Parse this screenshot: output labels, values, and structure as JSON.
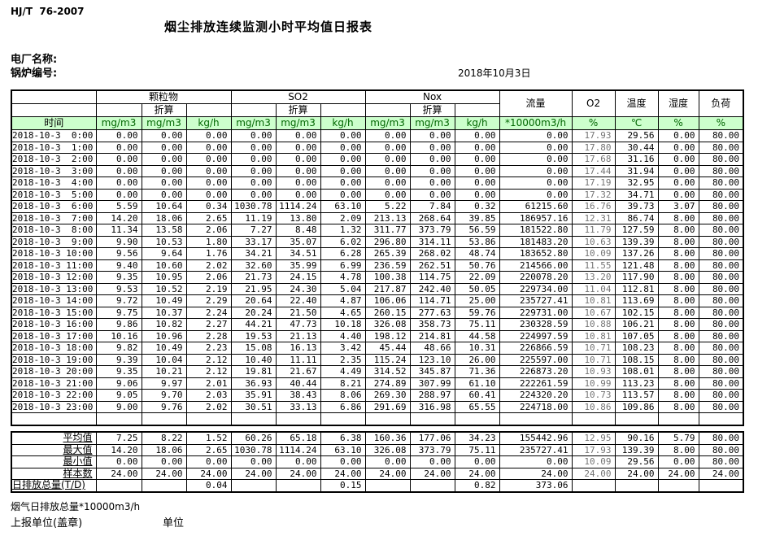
{
  "page": {
    "doc_code": "HJ/T  76-2007",
    "title": "烟尘排放连续监测小时平均值日报表",
    "plant_label": "电厂名称:",
    "boiler_label": "锅炉编号:",
    "date": "2018年10月3日",
    "footer_flue_total": "烟气日排放总量*10000m3/h",
    "footer_report_unit": "上报单位(盖章)",
    "footer_unit": "单位"
  },
  "colors": {
    "header_green": "#ccffcc",
    "unit_text_green": "#006600",
    "o2_text_gray": "#757575"
  },
  "table": {
    "time_header": "时间",
    "groups": [
      "颗粒物",
      "SO2",
      "Nox"
    ],
    "zhesuan": "折算",
    "singles": [
      "流量",
      "O2",
      "温度",
      "湿度",
      "负荷"
    ],
    "units": [
      "mg/m3",
      "mg/m3",
      "kg/h",
      "mg/m3",
      "mg/m3",
      "kg/h",
      "mg/m3",
      "mg/m3",
      "kg/h",
      "*10000m3/h",
      "%",
      "℃",
      "%",
      "%"
    ],
    "rows": [
      {
        "time": "2018-10-3  0:00",
        "values": [
          "0.00",
          "0.00",
          "0.00",
          "0.00",
          "0.00",
          "0.00",
          "0.00",
          "0.00",
          "0.00",
          "0.00",
          "17.93",
          "29.56",
          "0.00",
          "80.00"
        ]
      },
      {
        "time": "2018-10-3  1:00",
        "values": [
          "0.00",
          "0.00",
          "0.00",
          "0.00",
          "0.00",
          "0.00",
          "0.00",
          "0.00",
          "0.00",
          "0.00",
          "17.80",
          "30.44",
          "0.00",
          "80.00"
        ]
      },
      {
        "time": "2018-10-3  2:00",
        "values": [
          "0.00",
          "0.00",
          "0.00",
          "0.00",
          "0.00",
          "0.00",
          "0.00",
          "0.00",
          "0.00",
          "0.00",
          "17.68",
          "31.16",
          "0.00",
          "80.00"
        ]
      },
      {
        "time": "2018-10-3  3:00",
        "values": [
          "0.00",
          "0.00",
          "0.00",
          "0.00",
          "0.00",
          "0.00",
          "0.00",
          "0.00",
          "0.00",
          "0.00",
          "17.44",
          "31.94",
          "0.00",
          "80.00"
        ]
      },
      {
        "time": "2018-10-3  4:00",
        "values": [
          "0.00",
          "0.00",
          "0.00",
          "0.00",
          "0.00",
          "0.00",
          "0.00",
          "0.00",
          "0.00",
          "0.00",
          "17.19",
          "32.95",
          "0.00",
          "80.00"
        ]
      },
      {
        "time": "2018-10-3  5:00",
        "values": [
          "0.00",
          "0.00",
          "0.00",
          "0.00",
          "0.00",
          "0.00",
          "0.00",
          "0.00",
          "0.00",
          "0.00",
          "17.32",
          "34.71",
          "0.00",
          "80.00"
        ]
      },
      {
        "time": "2018-10-3  6:00",
        "values": [
          "5.59",
          "10.64",
          "0.34",
          "1030.78",
          "1114.24",
          "63.10",
          "5.22",
          "7.84",
          "0.32",
          "61215.60",
          "16.76",
          "39.73",
          "3.07",
          "80.00"
        ]
      },
      {
        "time": "2018-10-3  7:00",
        "values": [
          "14.20",
          "18.06",
          "2.65",
          "11.19",
          "13.80",
          "2.09",
          "213.13",
          "268.64",
          "39.85",
          "186957.16",
          "12.31",
          "86.74",
          "8.00",
          "80.00"
        ]
      },
      {
        "time": "2018-10-3  8:00",
        "values": [
          "11.34",
          "13.58",
          "2.06",
          "7.27",
          "8.48",
          "1.32",
          "311.77",
          "373.79",
          "56.59",
          "181522.80",
          "11.79",
          "127.59",
          "8.00",
          "80.00"
        ]
      },
      {
        "time": "2018-10-3  9:00",
        "values": [
          "9.90",
          "10.53",
          "1.80",
          "33.17",
          "35.07",
          "6.02",
          "296.80",
          "314.11",
          "53.86",
          "181483.20",
          "10.63",
          "139.39",
          "8.00",
          "80.00"
        ]
      },
      {
        "time": "2018-10-3 10:00",
        "values": [
          "9.56",
          "9.64",
          "1.76",
          "34.21",
          "34.51",
          "6.28",
          "265.39",
          "268.02",
          "48.74",
          "183652.80",
          "10.09",
          "137.26",
          "8.00",
          "80.00"
        ]
      },
      {
        "time": "2018-10-3 11:00",
        "values": [
          "9.40",
          "10.60",
          "2.02",
          "32.60",
          "35.99",
          "6.99",
          "236.59",
          "262.51",
          "50.76",
          "214566.00",
          "11.55",
          "121.48",
          "8.00",
          "80.00"
        ]
      },
      {
        "time": "2018-10-3 12:00",
        "values": [
          "9.35",
          "10.95",
          "2.06",
          "21.73",
          "24.15",
          "4.78",
          "100.38",
          "114.75",
          "22.09",
          "220078.20",
          "13.20",
          "117.90",
          "8.00",
          "80.00"
        ]
      },
      {
        "time": "2018-10-3 13:00",
        "values": [
          "9.53",
          "10.52",
          "2.19",
          "21.95",
          "24.30",
          "5.04",
          "217.87",
          "242.40",
          "50.05",
          "229734.00",
          "11.04",
          "112.81",
          "8.00",
          "80.00"
        ]
      },
      {
        "time": "2018-10-3 14:00",
        "values": [
          "9.72",
          "10.49",
          "2.29",
          "20.64",
          "22.40",
          "4.87",
          "106.06",
          "114.71",
          "25.00",
          "235727.41",
          "10.81",
          "113.69",
          "8.00",
          "80.00"
        ]
      },
      {
        "time": "2018-10-3 15:00",
        "values": [
          "9.75",
          "10.37",
          "2.24",
          "20.24",
          "21.50",
          "4.65",
          "260.15",
          "277.63",
          "59.76",
          "229731.00",
          "10.67",
          "102.15",
          "8.00",
          "80.00"
        ]
      },
      {
        "time": "2018-10-3 16:00",
        "values": [
          "9.86",
          "10.82",
          "2.27",
          "44.21",
          "47.73",
          "10.18",
          "326.08",
          "358.73",
          "75.11",
          "230328.59",
          "10.88",
          "106.21",
          "8.00",
          "80.00"
        ]
      },
      {
        "time": "2018-10-3 17:00",
        "values": [
          "10.16",
          "10.96",
          "2.28",
          "19.53",
          "21.13",
          "4.40",
          "198.12",
          "214.81",
          "44.58",
          "224997.59",
          "10.81",
          "107.05",
          "8.00",
          "80.00"
        ]
      },
      {
        "time": "2018-10-3 18:00",
        "values": [
          "9.82",
          "10.49",
          "2.23",
          "15.08",
          "16.13",
          "3.42",
          "45.44",
          "48.66",
          "10.31",
          "226866.59",
          "10.71",
          "108.23",
          "8.00",
          "80.00"
        ]
      },
      {
        "time": "2018-10-3 19:00",
        "values": [
          "9.39",
          "10.04",
          "2.12",
          "10.40",
          "11.11",
          "2.35",
          "115.24",
          "123.10",
          "26.00",
          "225597.00",
          "10.71",
          "108.15",
          "8.00",
          "80.00"
        ]
      },
      {
        "time": "2018-10-3 20:00",
        "values": [
          "9.35",
          "10.21",
          "2.12",
          "19.81",
          "21.67",
          "4.49",
          "314.52",
          "345.87",
          "71.36",
          "226873.20",
          "10.93",
          "108.01",
          "8.00",
          "80.00"
        ]
      },
      {
        "time": "2018-10-3 21:00",
        "values": [
          "9.06",
          "9.97",
          "2.01",
          "36.93",
          "40.44",
          "8.21",
          "274.89",
          "307.99",
          "61.10",
          "222261.59",
          "10.99",
          "113.23",
          "8.00",
          "80.00"
        ]
      },
      {
        "time": "2018-10-3 22:00",
        "values": [
          "9.05",
          "9.70",
          "2.03",
          "35.91",
          "38.43",
          "8.06",
          "269.30",
          "288.97",
          "60.41",
          "224320.20",
          "10.73",
          "113.57",
          "8.00",
          "80.00"
        ]
      },
      {
        "time": "2018-10-3 23:00",
        "values": [
          "9.00",
          "9.76",
          "2.02",
          "30.51",
          "33.13",
          "6.86",
          "291.69",
          "316.98",
          "65.55",
          "224718.00",
          "10.86",
          "109.86",
          "8.00",
          "80.00"
        ]
      }
    ],
    "summary_rows": [
      {
        "label": "平均值",
        "values": [
          "7.25",
          "8.22",
          "1.52",
          "60.26",
          "65.18",
          "6.38",
          "160.36",
          "177.06",
          "34.23",
          "155442.96",
          "12.95",
          "90.16",
          "5.79",
          "80.00"
        ]
      },
      {
        "label": "最大值",
        "values": [
          "14.20",
          "18.06",
          "2.65",
          "1030.78",
          "1114.24",
          "63.10",
          "326.08",
          "373.79",
          "75.11",
          "235727.41",
          "17.93",
          "139.39",
          "8.00",
          "80.00"
        ]
      },
      {
        "label": "最小值",
        "values": [
          "0.00",
          "0.00",
          "0.00",
          "0.00",
          "0.00",
          "0.00",
          "0.00",
          "0.00",
          "0.00",
          "0.00",
          "10.09",
          "29.56",
          "0.00",
          "80.00"
        ]
      },
      {
        "label": "样本数",
        "values": [
          "24.00",
          "24.00",
          "24.00",
          "24.00",
          "24.00",
          "24.00",
          "24.00",
          "24.00",
          "24.00",
          "24.00",
          "24.00",
          "24.00",
          "24.00",
          "24.00"
        ]
      }
    ],
    "daily_total_row": {
      "label": "日排放总量(T/D)",
      "values": [
        "",
        "",
        "0.04",
        "",
        "",
        "0.15",
        "",
        "",
        "0.82",
        "373.06",
        "",
        "",
        "",
        ""
      ]
    }
  }
}
